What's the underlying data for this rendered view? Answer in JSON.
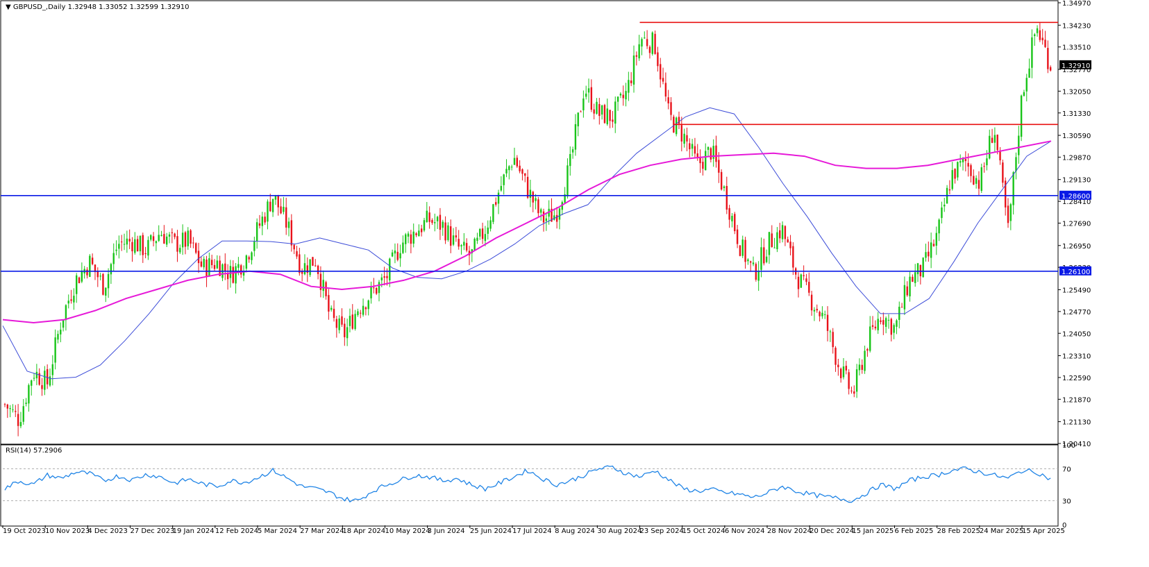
{
  "header": {
    "collapse_arrow": "▼",
    "symbol": "GBPUSD_,Daily",
    "ohlc": "1.32948 1.33052 1.32599 1.32910"
  },
  "rsi_header": "RSI(14) 57.2906",
  "colors": {
    "bull": "#18c418",
    "bear": "#e8121a",
    "ma_fast": "#3c4cd8",
    "ma_slow": "#e619d8",
    "hline_red": "#e81010",
    "hline_blue": "#0a1ae6",
    "rsi": "#1f84e6",
    "frame": "#000000"
  },
  "chart_data": {
    "type": "candlestick",
    "title": "GBPUSD_,Daily",
    "ylim": [
      1.2041,
      1.3497
    ],
    "y_ticks": [
      "1.34970",
      "1.34230",
      "1.33510",
      "1.32770",
      "1.32050",
      "1.31330",
      "1.30590",
      "1.29870",
      "1.29130",
      "1.28410",
      "1.27690",
      "1.26950",
      "1.26230",
      "1.25490",
      "1.24770",
      "1.24050",
      "1.23310",
      "1.22590",
      "1.21870",
      "1.21130",
      "1.20410"
    ],
    "x_ticks": [
      "19 Oct 2023",
      "10 Nov 2023",
      "4 Dec 2023",
      "27 Dec 2023",
      "19 Jan 2024",
      "12 Feb 2024",
      "5 Mar 2024",
      "27 Mar 2024",
      "18 Apr 2024",
      "10 May 2024",
      "3 Jun 2024",
      "25 Jun 2024",
      "17 Jul 2024",
      "8 Aug 2024",
      "30 Aug 2024",
      "23 Sep 2024",
      "15 Oct 2024",
      "6 Nov 2024",
      "28 Nov 2024",
      "20 Dec 2024",
      "15 Jan 2025",
      "6 Feb 2025",
      "28 Feb 2025",
      "24 Mar 2025",
      "15 Apr 2025"
    ],
    "close_path": [
      {
        "t": "19 Oct 2023",
        "v": 1.217
      },
      {
        "t": "26 Oct 2023",
        "v": 1.212
      },
      {
        "t": "3 Nov 2023",
        "v": 1.228
      },
      {
        "t": "10 Nov 2023",
        "v": 1.224
      },
      {
        "t": "17 Nov 2023",
        "v": 1.245
      },
      {
        "t": "24 Nov 2023",
        "v": 1.258
      },
      {
        "t": "4 Dec 2023",
        "v": 1.264
      },
      {
        "t": "11 Dec 2023",
        "v": 1.256
      },
      {
        "t": "18 Dec 2023",
        "v": 1.27
      },
      {
        "t": "27 Dec 2023",
        "v": 1.271
      },
      {
        "t": "5 Jan 2024",
        "v": 1.268
      },
      {
        "t": "12 Jan 2024",
        "v": 1.274
      },
      {
        "t": "19 Jan 2024",
        "v": 1.27
      },
      {
        "t": "26 Jan 2024",
        "v": 1.271
      },
      {
        "t": "2 Feb 2024",
        "v": 1.262
      },
      {
        "t": "12 Feb 2024",
        "v": 1.264
      },
      {
        "t": "19 Feb 2024",
        "v": 1.26
      },
      {
        "t": "26 Feb 2024",
        "v": 1.265
      },
      {
        "t": "5 Mar 2024",
        "v": 1.276
      },
      {
        "t": "8 Mar 2024",
        "v": 1.286
      },
      {
        "t": "15 Mar 2024",
        "v": 1.276
      },
      {
        "t": "27 Mar 2024",
        "v": 1.262
      },
      {
        "t": "5 Apr 2024",
        "v": 1.265
      },
      {
        "t": "12 Apr 2024",
        "v": 1.246
      },
      {
        "t": "18 Apr 2024",
        "v": 1.24
      },
      {
        "t": "25 Apr 2024",
        "v": 1.249
      },
      {
        "t": "2 May 2024",
        "v": 1.254
      },
      {
        "t": "10 May 2024",
        "v": 1.259
      },
      {
        "t": "17 May 2024",
        "v": 1.27
      },
      {
        "t": "24 May 2024",
        "v": 1.274
      },
      {
        "t": "3 Jun 2024",
        "v": 1.278
      },
      {
        "t": "10 Jun 2024",
        "v": 1.276
      },
      {
        "t": "17 Jun 2024",
        "v": 1.269
      },
      {
        "t": "25 Jun 2024",
        "v": 1.266
      },
      {
        "t": "2 Jul 2024",
        "v": 1.275
      },
      {
        "t": "10 Jul 2024",
        "v": 1.288
      },
      {
        "t": "17 Jul 2024",
        "v": 1.299
      },
      {
        "t": "24 Jul 2024",
        "v": 1.288
      },
      {
        "t": "1 Aug 2024",
        "v": 1.278
      },
      {
        "t": "8 Aug 2024",
        "v": 1.28
      },
      {
        "t": "15 Aug 2024",
        "v": 1.296
      },
      {
        "t": "22 Aug 2024",
        "v": 1.322
      },
      {
        "t": "30 Aug 2024",
        "v": 1.313
      },
      {
        "t": "6 Sep 2024",
        "v": 1.312
      },
      {
        "t": "13 Sep 2024",
        "v": 1.32
      },
      {
        "t": "23 Sep 2024",
        "v": 1.338
      },
      {
        "t": "27 Sep 2024",
        "v": 1.336
      },
      {
        "t": "3 Oct 2024",
        "v": 1.312
      },
      {
        "t": "15 Oct 2024",
        "v": 1.306
      },
      {
        "t": "22 Oct 2024",
        "v": 1.296
      },
      {
        "t": "29 Oct 2024",
        "v": 1.301
      },
      {
        "t": "6 Nov 2024",
        "v": 1.286
      },
      {
        "t": "12 Nov 2024",
        "v": 1.27
      },
      {
        "t": "20 Nov 2024",
        "v": 1.26
      },
      {
        "t": "28 Nov 2024",
        "v": 1.27
      },
      {
        "t": "6 Dec 2024",
        "v": 1.275
      },
      {
        "t": "13 Dec 2024",
        "v": 1.26
      },
      {
        "t": "20 Dec 2024",
        "v": 1.252
      },
      {
        "t": "31 Dec 2024",
        "v": 1.245
      },
      {
        "t": "7 Jan 2025",
        "v": 1.23
      },
      {
        "t": "15 Jan 2025",
        "v": 1.22
      },
      {
        "t": "22 Jan 2025",
        "v": 1.237
      },
      {
        "t": "29 Jan 2025",
        "v": 1.247
      },
      {
        "t": "6 Feb 2025",
        "v": 1.242
      },
      {
        "t": "13 Feb 2025",
        "v": 1.258
      },
      {
        "t": "20 Feb 2025",
        "v": 1.262
      },
      {
        "t": "28 Feb 2025",
        "v": 1.273
      },
      {
        "t": "7 Mar 2025",
        "v": 1.293
      },
      {
        "t": "14 Mar 2025",
        "v": 1.297
      },
      {
        "t": "24 Mar 2025",
        "v": 1.29
      },
      {
        "t": "31 Mar 2025",
        "v": 1.309
      },
      {
        "t": "7 Apr 2025",
        "v": 1.274
      },
      {
        "t": "15 Apr 2025",
        "v": 1.32
      },
      {
        "t": "21 Apr 2025",
        "v": 1.342
      },
      {
        "t": "28 Apr 2025",
        "v": 1.3291
      }
    ],
    "ma_fast_path": [
      1.243,
      1.228,
      1.2255,
      1.226,
      1.23,
      1.238,
      1.247,
      1.257,
      1.265,
      1.271,
      1.271,
      1.2708,
      1.27,
      1.272,
      1.27,
      1.268,
      1.262,
      1.259,
      1.2585,
      1.261,
      1.265,
      1.27,
      1.276,
      1.28,
      1.283,
      1.292,
      1.3,
      1.306,
      1.312,
      1.315,
      1.313,
      1.302,
      1.29,
      1.279,
      1.267,
      1.256,
      1.247,
      1.247,
      1.252,
      1.264,
      1.277,
      1.288,
      1.299,
      1.304
    ],
    "ma_slow_path": [
      1.245,
      1.244,
      1.245,
      1.248,
      1.252,
      1.255,
      1.258,
      1.26,
      1.261,
      1.26,
      1.256,
      1.255,
      1.256,
      1.258,
      1.261,
      1.266,
      1.272,
      1.277,
      1.282,
      1.288,
      1.293,
      1.296,
      1.298,
      1.299,
      1.2995,
      1.3,
      1.299,
      1.296,
      1.295,
      1.295,
      1.296,
      1.298,
      1.3,
      1.302,
      1.304
    ],
    "hlines": [
      {
        "price": 1.3432,
        "color": "red",
        "from": "23 Sep 2024"
      },
      {
        "price": 1.3095,
        "color": "red",
        "from": "3 Oct 2024"
      },
      {
        "price": 1.286,
        "color": "blue",
        "label": "1.28600"
      },
      {
        "price": 1.261,
        "color": "blue",
        "label": "1.26100"
      }
    ],
    "current_price_label": "1.32910",
    "rsi": {
      "name": "RSI(14)",
      "value": 57.2906,
      "ylim": [
        0,
        100
      ],
      "y_ticks": [
        "100",
        "70",
        "30",
        "0"
      ],
      "levels": [
        70,
        30
      ],
      "values": [
        45,
        55,
        50,
        62,
        58,
        66,
        64,
        55,
        61,
        56,
        63,
        60,
        52,
        57,
        51,
        48,
        55,
        53,
        60,
        68,
        58,
        48,
        45,
        40,
        32,
        30,
        42,
        50,
        56,
        62,
        60,
        55,
        58,
        50,
        45,
        52,
        60,
        68,
        58,
        50,
        55,
        62,
        70,
        72,
        64,
        60,
        68,
        56,
        45,
        42,
        44,
        40,
        38,
        34,
        40,
        48,
        42,
        38,
        35,
        33,
        30,
        40,
        50,
        45,
        55,
        60,
        62,
        68,
        70,
        66,
        62,
        58,
        68,
        66,
        57
      ]
    }
  }
}
